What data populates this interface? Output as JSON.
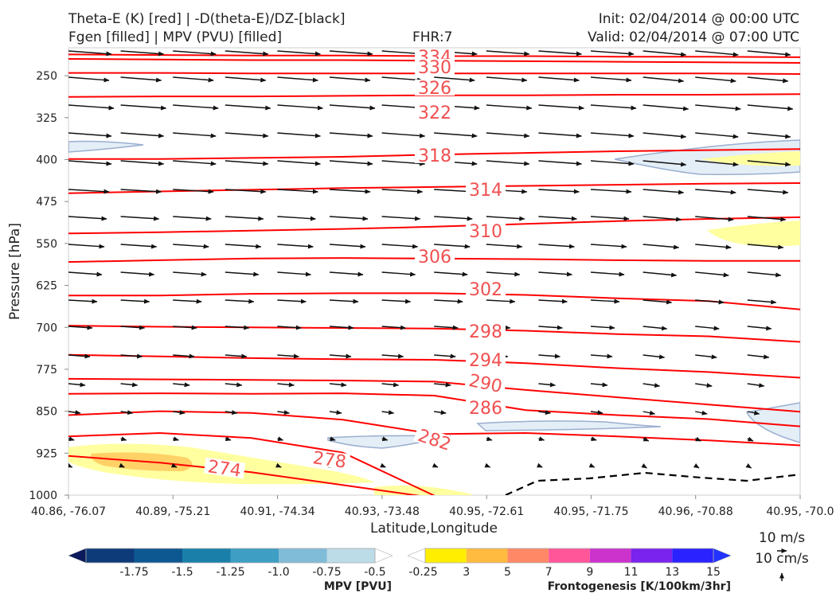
{
  "header": {
    "title_line1": "Theta-E (K) [red] | -D(theta-E)/DZ-[black]",
    "title_line2": "Fgen [filled] | MPV (PVU) [filled]",
    "fhr": "FHR:7",
    "init": "Init: 02/04/2014 @ 00:00 UTC",
    "valid": "Valid: 02/04/2014 @ 07:00 UTC"
  },
  "chart_data": {
    "type": "cross-section",
    "xlabel": "Latitude,Longitude",
    "ylabel": "Pressure [hPa]",
    "x_ticks": [
      "40.86, -76.07",
      "40.89, -75.21",
      "40.91, -74.34",
      "40.93, -73.48",
      "40.95, -72.61",
      "40.95, -71.75",
      "40.96, -70.88",
      "40.95, -70.0"
    ],
    "y_ticks": [
      250,
      325,
      400,
      475,
      550,
      625,
      700,
      775,
      850,
      925,
      1000
    ],
    "ylim": [
      1000,
      200
    ],
    "theta_e_contours": {
      "color": "#ff0000",
      "levels": [
        {
          "value": 334,
          "label": "334",
          "p": [
            212,
            213,
            214,
            214,
            215,
            215,
            216,
            216,
            217
          ]
        },
        {
          "value": 330,
          "label": "330",
          "p": [
            220,
            221,
            222,
            222,
            223,
            224,
            225,
            226,
            227
          ]
        },
        {
          "value": 326,
          "label": "326",
          "p": [
            245,
            245,
            246,
            246,
            246,
            246,
            246,
            246,
            247
          ]
        },
        {
          "value": 322,
          "label": "322",
          "p": [
            288,
            287,
            287,
            286,
            285,
            285,
            284,
            284,
            283
          ]
        },
        {
          "value": 318,
          "label": "318",
          "p": [
            399,
            399,
            397,
            395,
            391,
            388,
            385,
            383,
            381
          ]
        },
        {
          "value": 314,
          "label": "314",
          "p": [
            460,
            457,
            454,
            451,
            449,
            447,
            445,
            443,
            442
          ]
        },
        {
          "value": 310,
          "label": "310",
          "p": [
            532,
            530,
            527,
            524,
            520,
            515,
            510,
            506,
            503
          ]
        },
        {
          "value": 306,
          "label": "306",
          "p": [
            583,
            580,
            577,
            576,
            577,
            578,
            580,
            581,
            581
          ]
        },
        {
          "value": 302,
          "label": "302",
          "p": [
            643,
            643,
            640,
            639,
            639,
            642,
            648,
            653,
            668
          ]
        },
        {
          "value": 298,
          "label": "298",
          "p": [
            697,
            699,
            700,
            701,
            702,
            706,
            712,
            716,
            726
          ]
        },
        {
          "value": 294,
          "label": "294",
          "p": [
            749,
            752,
            755,
            757,
            758,
            764,
            773,
            780,
            790
          ]
        },
        {
          "value": 290,
          "label": "290",
          "p": [
            792,
            793,
            794,
            795,
            797,
            812,
            825,
            838,
            851
          ]
        },
        {
          "value": 286,
          "label": "286",
          "p": [
            819,
            818,
            819,
            818,
            822,
            848,
            857,
            864,
            877
          ]
        },
        {
          "value": 282,
          "label": "282",
          "p": [
            857,
            850,
            853,
            865,
            891,
            889,
            895,
            902,
            911
          ]
        },
        {
          "value": 278,
          "label": "278",
          "p": [
            895,
            889,
            898,
            924,
            1001
          ]
        },
        {
          "value": 274,
          "label": "274",
          "p": [
            930,
            942,
            959,
            982,
            1005
          ]
        }
      ]
    },
    "dtheta_dz_contours": {
      "color": "#000000",
      "style": "dashed",
      "levels": [
        {
          "value": 0
        }
      ]
    },
    "wind_vectors": {
      "color": "#000000",
      "reference": "10 m/s"
    },
    "mpv": {
      "colorbar_title": "MPV [PVU]",
      "ticks": [
        "-1.75",
        "-1.5",
        "-1.25",
        "-1.0",
        "-0.75",
        "-0.5",
        "-0.25"
      ],
      "colors": [
        "#0a1a5a",
        "#0d3a78",
        "#0e5892",
        "#1a80aa",
        "#3e9ec4",
        "#80bcd8",
        "#bcdce8",
        "#ffffff"
      ]
    },
    "frontogenesis": {
      "colorbar_title": "Frontogenesis [K/100km/3hr]",
      "ticks": [
        "3",
        "5",
        "7",
        "9",
        "11",
        "13",
        "15"
      ],
      "colors": [
        "#ffffff",
        "#ffee00",
        "#ffbb40",
        "#ff8866",
        "#ff5599",
        "#cc33cc",
        "#7a22ee",
        "#2a22ff",
        "#2233ff"
      ]
    },
    "vector_scale": {
      "horizontal": "10 m/s",
      "vertical": "10 cm/s"
    }
  }
}
